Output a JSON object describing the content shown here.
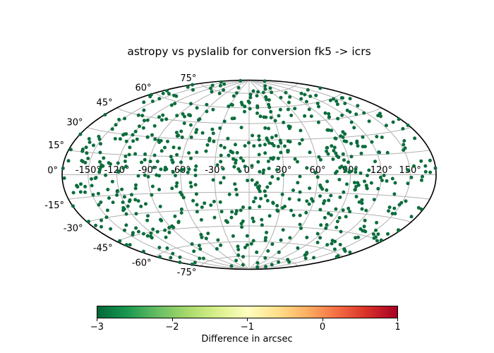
{
  "title": "astropy vs pyslalib for conversion fk5 -> icrs",
  "chart_data": {
    "type": "scatter",
    "projection": "hammer",
    "title": "astropy vs pyslalib for conversion fk5 -> icrs",
    "grid": true,
    "axes": {
      "lon_ticks_deg": [
        -150,
        -120,
        -90,
        -60,
        -30,
        0,
        30,
        60,
        90,
        120,
        150
      ],
      "lon_tick_labels": [
        "-150°",
        "-120°",
        "-90°",
        "-60°",
        "-30°",
        "0°",
        "30°",
        "60°",
        "90°",
        "120°",
        "150°"
      ],
      "lat_ticks_deg": [
        75,
        60,
        45,
        30,
        15,
        0,
        -15,
        -30,
        -45,
        -60,
        -75
      ],
      "lat_tick_labels": [
        "75°",
        "60°",
        "45°",
        "30°",
        "15°",
        "0°",
        "-15°",
        "-30°",
        "-45°",
        "-60°",
        "-75°"
      ],
      "lon_range_deg": [
        -180,
        180
      ],
      "lat_range_deg": [
        -90,
        90
      ]
    },
    "points": {
      "count": 750,
      "distribution": "uniform-on-sphere",
      "seed": 7,
      "value_arcsec_approx": -2.85,
      "marker_color": "#0d6d3d",
      "marker_radius_px": 2.5
    },
    "colorbar": {
      "label": "Difference in arcsec",
      "vmin": -3,
      "vmax": 1,
      "tick_values": [
        -3,
        -2,
        -1,
        0,
        1
      ],
      "tick_labels": [
        "−3",
        "−2",
        "−1",
        "0",
        "1"
      ],
      "cmap": "RdYlGn_r",
      "cmap_stops": [
        "#006837",
        "#1a9850",
        "#66bd63",
        "#a6d96a",
        "#d9ef8b",
        "#ffffbf",
        "#fee08b",
        "#fdae61",
        "#f46d43",
        "#d73027",
        "#a50026"
      ]
    },
    "colors": {
      "background": "#ffffff",
      "grid": "#b0b0b0",
      "outline": "#000000",
      "text": "#000000"
    }
  }
}
